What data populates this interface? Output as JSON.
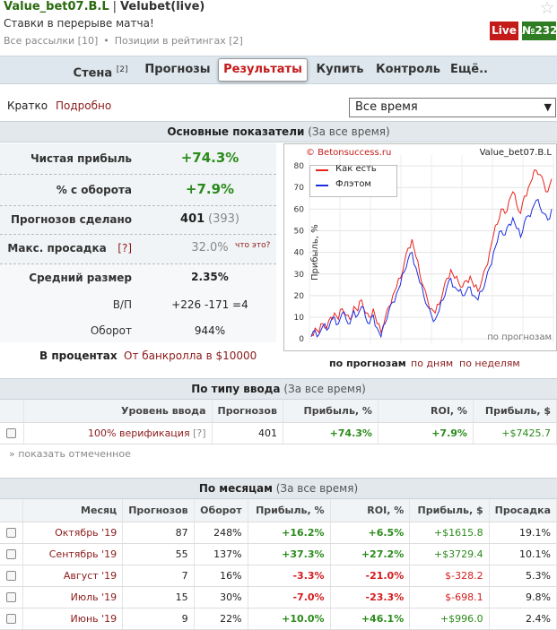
{
  "header": {
    "nickname": "Value_bet07.B.L",
    "separator": "|",
    "service": "Velubet(live)",
    "subtitle": "Ставки в перерыве матча!",
    "link_mailings": "Все рассылки [10]",
    "link_positions": "Позиции в рейтингах [2]",
    "dot": "•",
    "badge_live": "Live",
    "badge_num": "№232",
    "star": "☆"
  },
  "tabs": [
    {
      "label": "Стена",
      "sup": "[2]"
    },
    {
      "label": "Прогнозы"
    },
    {
      "label": "Результаты"
    },
    {
      "label": "Купить"
    },
    {
      "label": "Контроль"
    },
    {
      "label": "Ещё.."
    }
  ],
  "view": {
    "short": "Кратко",
    "detail": "Подробно",
    "period": "Все время",
    "arrow": "▼"
  },
  "main_stats": {
    "title": "Основные показатели",
    "period": "(За все время)",
    "net_profit_label": "Чистая прибыль",
    "net_profit": "+74.3%",
    "turnover_pct_label": "% с оборота",
    "turnover_pct": "+7.9%",
    "tips_label": "Прогнозов сделано",
    "tips": "401",
    "tips_extra": "(393)",
    "drawdown_label": "Макс. просадка",
    "drawdown_help": "[?]",
    "drawdown": "32.0%",
    "drawdown_whatis": "что это?",
    "avg_size_label": "Средний размер",
    "avg_size": "2.35%",
    "wl_label": "В/П",
    "wl": "+226 -171 =4",
    "turnover_label": "Оборот",
    "turnover": "944%",
    "in_percent": "В процентах",
    "from_bank": "От банкролла в $10000"
  },
  "chart_nav": {
    "by_tips": "по прогнозам",
    "by_days": "по дням",
    "by_weeks": "по неделям"
  },
  "chart_data": {
    "type": "line",
    "title": "Value_bet07.B.L",
    "credit": "© Betonsuccess.ru",
    "ylabel": "Прибыль, %",
    "xlabel": "по прогнозам",
    "ylim": [
      -2,
      85
    ],
    "yticks": [
      0,
      10,
      20,
      30,
      40,
      50,
      60,
      70,
      80
    ],
    "grid": true,
    "legend_position": "top-left",
    "series": [
      {
        "name": "Как есть",
        "color": "#e8231f",
        "values": [
          2,
          5,
          3,
          7,
          5,
          10,
          12,
          9,
          14,
          11,
          9,
          15,
          13,
          18,
          12,
          10,
          14,
          7,
          3,
          9,
          15,
          20,
          24,
          28,
          35,
          42,
          46,
          38,
          30,
          24,
          18,
          14,
          12,
          16,
          22,
          28,
          32,
          28,
          26,
          24,
          27,
          29,
          24,
          22,
          27,
          33,
          40,
          48,
          53,
          60,
          58,
          64,
          68,
          62,
          58,
          66,
          70,
          74,
          78,
          76,
          72,
          68,
          74
        ]
      },
      {
        "name": "Флэтом",
        "color": "#1c2ee0",
        "values": [
          1,
          4,
          2,
          6,
          4,
          8,
          10,
          7,
          12,
          9,
          7,
          13,
          11,
          15,
          10,
          7,
          11,
          5,
          1,
          7,
          13,
          17,
          21,
          25,
          31,
          37,
          40,
          33,
          26,
          20,
          15,
          11,
          9,
          13,
          18,
          24,
          28,
          24,
          22,
          20,
          22,
          24,
          20,
          18,
          22,
          27,
          33,
          40,
          45,
          50,
          48,
          53,
          56,
          51,
          47,
          54,
          57,
          60,
          64,
          61,
          58,
          55,
          60
        ]
      }
    ]
  },
  "by_type": {
    "title": "По типу ввода",
    "period": "(За все время)",
    "headers": [
      "Уровень ввода",
      "Прогнозов",
      "Прибыль, %",
      "ROI, %",
      "Прибыль, $"
    ],
    "rows": [
      {
        "level": "100% верификация",
        "help": "[?]",
        "tips": "401",
        "profit_pct": "+74.3%",
        "roi": "+7.9%",
        "profit_usd": "+$7425.7"
      }
    ],
    "show_marked": "» показать отмеченное"
  },
  "by_month": {
    "title": "По месяцам",
    "period": "(За все время)",
    "headers": [
      "Месяц",
      "Прогнозов",
      "Оборот",
      "Прибыль, %",
      "ROI, %",
      "Прибыль, $",
      "Просадка"
    ],
    "rows": [
      {
        "month": "Октябрь '19",
        "tips": "87",
        "turnover": "248%",
        "profit_pct": "+16.2%",
        "roi": "+6.5%",
        "profit_usd": "+$1615.8",
        "drawdown": "19.1%",
        "pos": true
      },
      {
        "month": "Сентябрь '19",
        "tips": "55",
        "turnover": "137%",
        "profit_pct": "+37.3%",
        "roi": "+27.2%",
        "profit_usd": "+$3729.4",
        "drawdown": "10.1%",
        "pos": true
      },
      {
        "month": "Август '19",
        "tips": "7",
        "turnover": "16%",
        "profit_pct": "-3.3%",
        "roi": "-21.0%",
        "profit_usd": "$-328.2",
        "drawdown": "5.3%",
        "pos": false
      },
      {
        "month": "Июль '19",
        "tips": "15",
        "turnover": "30%",
        "profit_pct": "-7.0%",
        "roi": "-23.3%",
        "profit_usd": "$-698.1",
        "drawdown": "9.8%",
        "pos": false
      },
      {
        "month": "Июнь '19",
        "tips": "9",
        "turnover": "22%",
        "profit_pct": "+10.0%",
        "roi": "+46.1%",
        "profit_usd": "+$996.0",
        "drawdown": "2.4%",
        "pos": true
      }
    ]
  }
}
